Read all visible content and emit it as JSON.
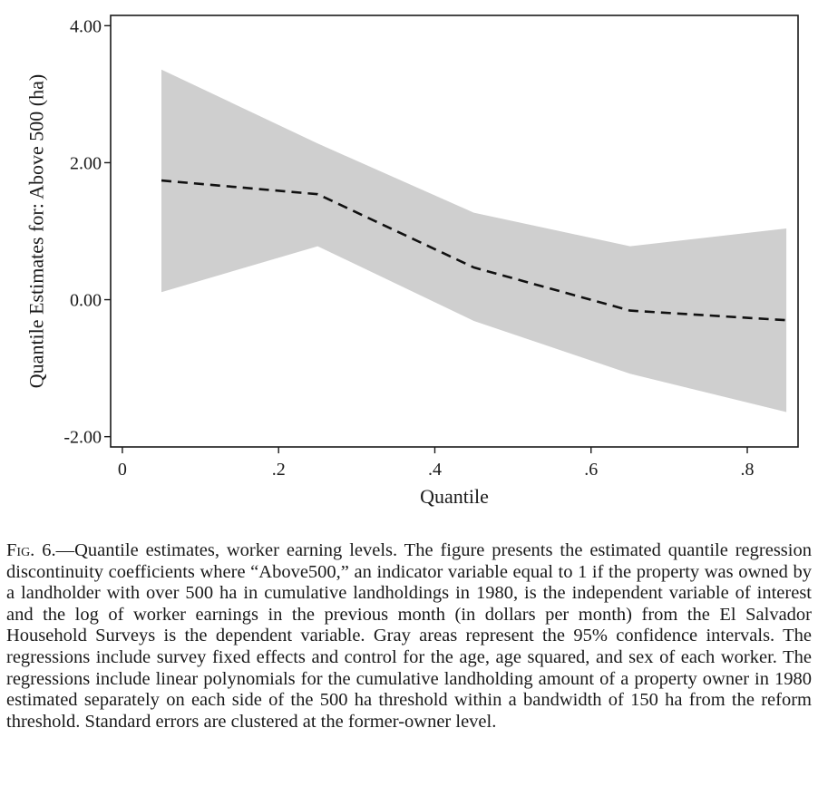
{
  "chart_data": {
    "type": "line",
    "title": "",
    "xlabel": "Quantile",
    "ylabel": "Quantile Estimates for: Above 500 (ha)",
    "xlim": [
      -0.015,
      0.865
    ],
    "ylim": [
      -2.15,
      4.15
    ],
    "xticks": [
      0,
      0.2,
      0.4,
      0.6,
      0.8
    ],
    "xtick_labels": [
      "0",
      ".2",
      ".4",
      ".6",
      ".8"
    ],
    "yticks": [
      -2,
      0,
      2,
      4
    ],
    "ytick_labels": [
      "-2.00",
      "0.00",
      "2.00",
      "4.00"
    ],
    "grid": false,
    "series": [
      {
        "style": "dashed",
        "color": "#111111",
        "x": [
          0.05,
          0.25,
          0.45,
          0.65,
          0.85
        ],
        "y": [
          1.74,
          1.54,
          0.47,
          -0.16,
          -0.3
        ],
        "ci_lower": [
          0.11,
          0.78,
          -0.31,
          -1.08,
          -1.64
        ],
        "ci_upper": [
          3.36,
          2.28,
          1.27,
          0.78,
          1.04
        ],
        "ci_color": "#cfcfcf"
      }
    ]
  },
  "caption": {
    "label": "Fig. 6.",
    "text": "—Quantile estimates, worker earning levels. The figure presents the estimated quantile regression discontinuity coefficients where “Above500,” an indicator variable equal to 1 if the property was owned by a landholder with over 500 ha in cumulative landholdings in 1980, is the independent variable of interest and the log of worker earnings in the previous month (in dollars per month) from the El Salvador Household Surveys is the dependent variable. Gray areas represent the 95% confidence intervals. The regressions include survey fixed effects and control for the age, age squared, and sex of each worker. The regressions include linear polynomials for the cumulative landholding amount of a property owner in 1980 estimated separately on each side of the 500 ha threshold within a bandwidth of 150 ha from the reform threshold. Standard errors are clustered at the former-owner level."
  }
}
